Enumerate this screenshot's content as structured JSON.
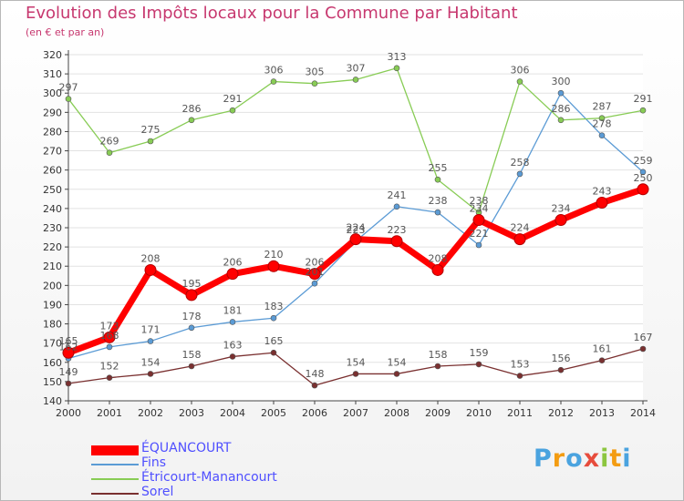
{
  "header": {
    "title": "Evolution des Impôts locaux pour la Commune par Habitant",
    "subtitle": "(en € et par an)"
  },
  "brand": {
    "text": "Proxiti"
  },
  "chart_data": {
    "type": "line",
    "title": "Evolution des Impôts locaux pour la Commune par Habitant",
    "subtitle": "(en € et par an)",
    "xlabel": "",
    "ylabel": "",
    "x": [
      "2000",
      "2001",
      "2002",
      "2003",
      "2004",
      "2005",
      "2006",
      "2007",
      "2008",
      "2009",
      "2010",
      "2011",
      "2012",
      "2013",
      "2014"
    ],
    "ylim": [
      140,
      320
    ],
    "ytick_step": 10,
    "grid": "horizontal",
    "legend_position": "bottom-left",
    "series": [
      {
        "name": "ÉQUANCOURT",
        "color": "#ff0000",
        "values": [
          165,
          173,
          208,
          195,
          206,
          210,
          206,
          224,
          223,
          208,
          234,
          224,
          234,
          243,
          250
        ]
      },
      {
        "name": "Fins",
        "color": "#5b9bd5",
        "values": [
          162,
          168,
          171,
          178,
          181,
          183,
          201,
          223,
          241,
          238,
          221,
          258,
          300,
          278,
          259
        ]
      },
      {
        "name": "Étricourt-Manancourt",
        "color": "#88cc55",
        "values": [
          297,
          269,
          275,
          286,
          291,
          306,
          305,
          307,
          313,
          255,
          238,
          306,
          286,
          287,
          291
        ]
      },
      {
        "name": "Sorel",
        "color": "#7a3030",
        "values": [
          149,
          152,
          154,
          158,
          163,
          165,
          148,
          154,
          154,
          158,
          159,
          153,
          156,
          161,
          167
        ]
      }
    ]
  }
}
